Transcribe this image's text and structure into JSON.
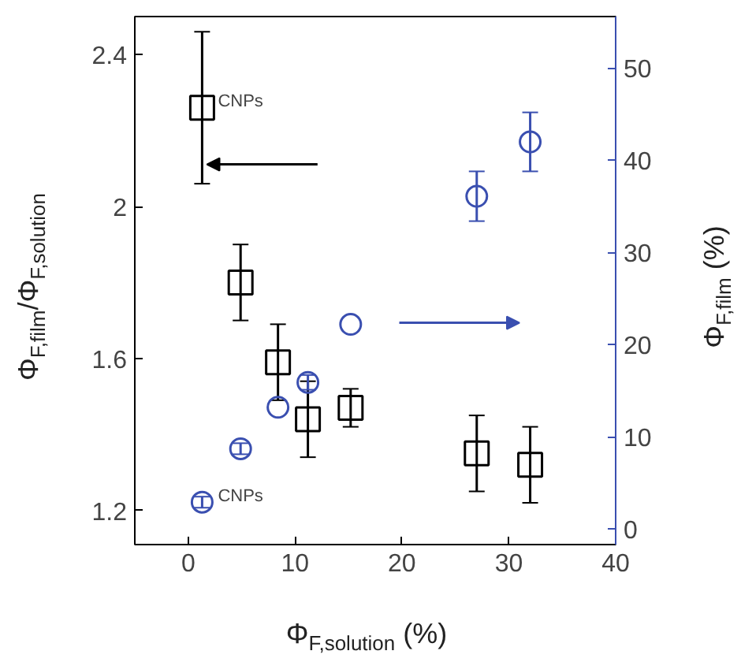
{
  "chart_data": {
    "type": "scatter",
    "xlabel": "Φ$_{F,solution}$ (%)",
    "ylabel": "Φ$_{F,film}$/Φ$_{F,solution}$",
    "y2label": "Φ$_{F,film}$ (%)",
    "x": [
      1.3,
      4.9,
      8.4,
      11.2,
      15.2,
      27.0,
      32.0
    ],
    "series": [
      {
        "color": "#000000",
        "marker": "square",
        "values": [
          2.26,
          1.8,
          1.59,
          1.44,
          1.47,
          1.35,
          1.32
        ],
        "errors": [
          0.2,
          0.1,
          0.1,
          0.1,
          0.05,
          0.1,
          0.1
        ]
      },
      {
        "color": "#3a4fb0",
        "marker": "circle",
        "axis": "y2",
        "values": [
          2.9,
          8.7,
          13.2,
          15.9,
          22.2,
          36.1,
          42.0
        ],
        "errors": [
          0.6,
          0.6,
          null,
          0.8,
          null,
          2.7,
          3.2
        ]
      }
    ],
    "xlim": [
      -5,
      40
    ],
    "xticks": [
      0,
      10,
      20,
      30,
      40
    ],
    "ylim": [
      1.11,
      2.5
    ],
    "yticks": [
      1.2,
      1.6,
      2.0,
      2.4
    ],
    "y2lim": [
      -1.7,
      55.6
    ],
    "y2ticks": [
      0,
      10,
      20,
      30,
      40,
      50
    ],
    "annotations": [
      {
        "text": "CNPs",
        "x": 1.3,
        "y": 2.26
      },
      {
        "text": "CNPs",
        "x": 1.3,
        "y": 1.22
      }
    ],
    "grid": false
  }
}
